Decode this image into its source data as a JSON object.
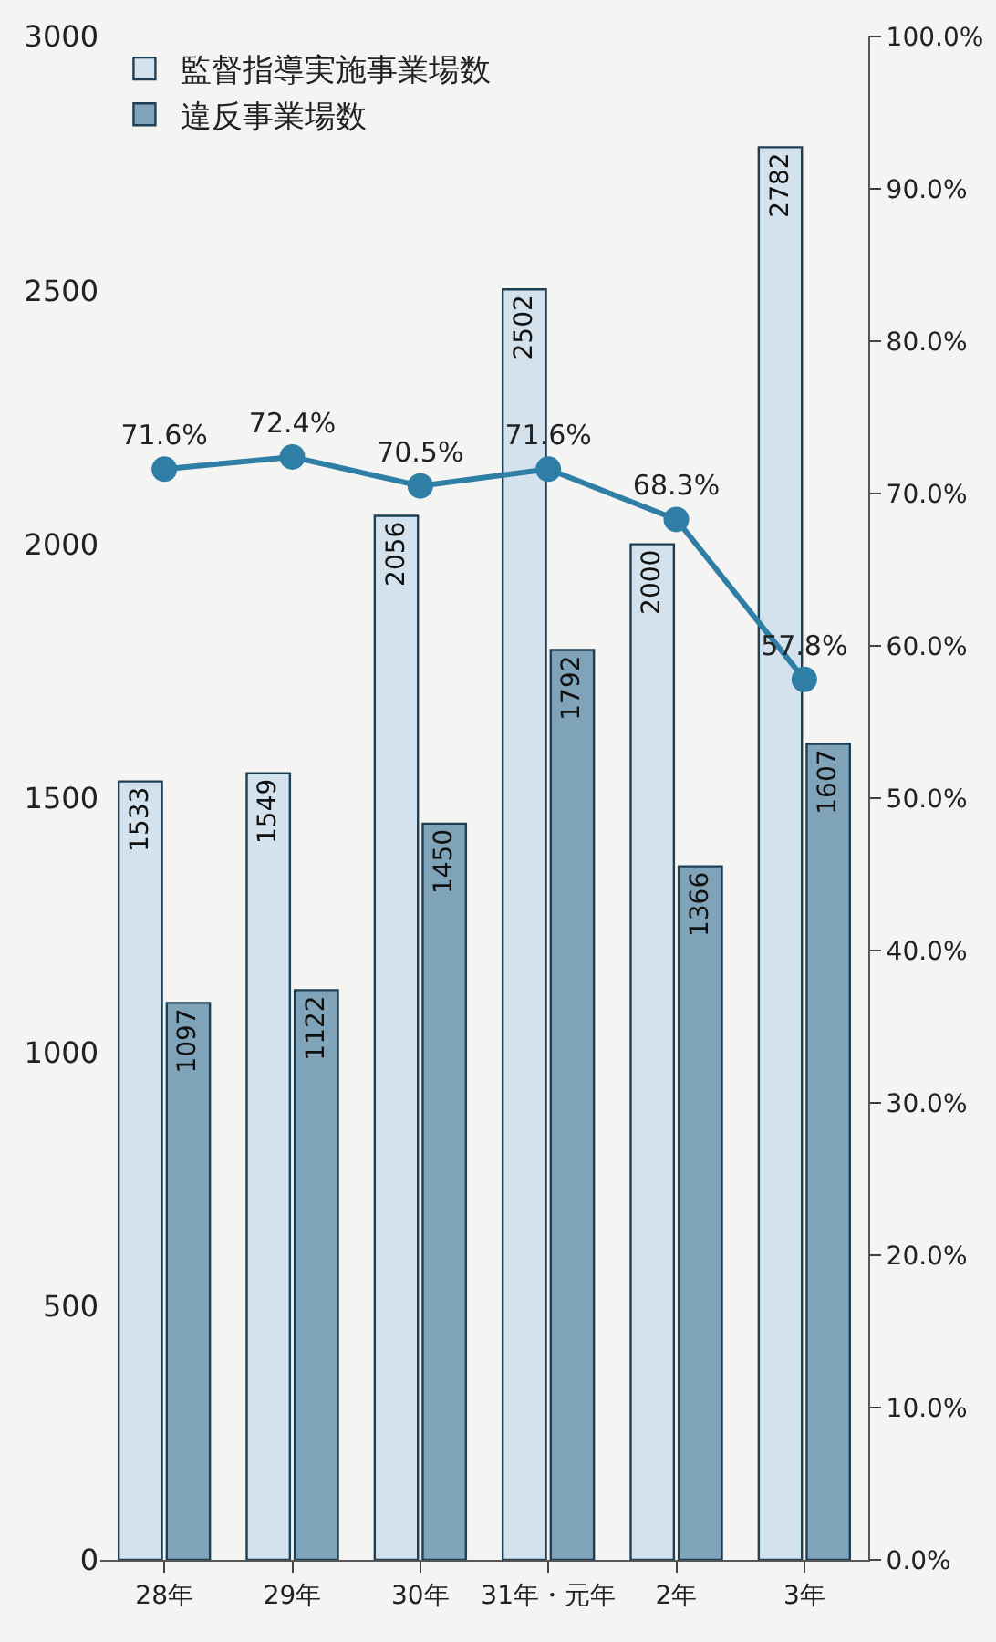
{
  "chart_data": {
    "type": "bar",
    "categories": [
      "28年",
      "29年",
      "30年",
      "31年・元年",
      "2年",
      "3年"
    ],
    "series": [
      {
        "name": "監督指導実施事業場数",
        "color": "#d3e2ec",
        "values": [
          1533,
          1549,
          2056,
          2502,
          2000,
          2782
        ],
        "value_labels": [
          "1533",
          "1549",
          "2056",
          "2502",
          "2000",
          "2782"
        ]
      },
      {
        "name": "違反事業場数",
        "color": "#7fa3b8",
        "values": [
          1097,
          1122,
          1450,
          1792,
          1366,
          1607
        ],
        "value_labels": [
          "1097",
          "1122",
          "1450",
          "1792",
          "1366",
          "1607"
        ]
      },
      {
        "type": "line",
        "axis": "y2",
        "color": "#2f7ea6",
        "values": [
          71.6,
          72.4,
          70.5,
          71.6,
          68.3,
          57.8
        ],
        "value_labels": [
          "71.6%",
          "72.4%",
          "70.5%",
          "71.6%",
          "68.3%",
          "57.8%"
        ]
      }
    ],
    "ylim": [
      0,
      3000
    ],
    "yticks": [
      0,
      500,
      1000,
      1500,
      2000,
      2500,
      3000
    ],
    "y2lim": [
      0,
      100
    ],
    "y2ticks": [
      {
        "value": 0,
        "label": "0.0%"
      },
      {
        "value": 10,
        "label": "10.0%"
      },
      {
        "value": 20,
        "label": "20.0%"
      },
      {
        "value": 30,
        "label": "30.0%"
      },
      {
        "value": 40,
        "label": "40.0%"
      },
      {
        "value": 50,
        "label": "50.0%"
      },
      {
        "value": 60,
        "label": "60.0%"
      },
      {
        "value": 70,
        "label": "70.0%"
      },
      {
        "value": 80,
        "label": "80.0%"
      },
      {
        "value": 90,
        "label": "90.0%"
      },
      {
        "value": 100,
        "label": "100.0%"
      }
    ],
    "grid": false,
    "legend": "top left",
    "marker": "circle",
    "line_style": "solid"
  }
}
